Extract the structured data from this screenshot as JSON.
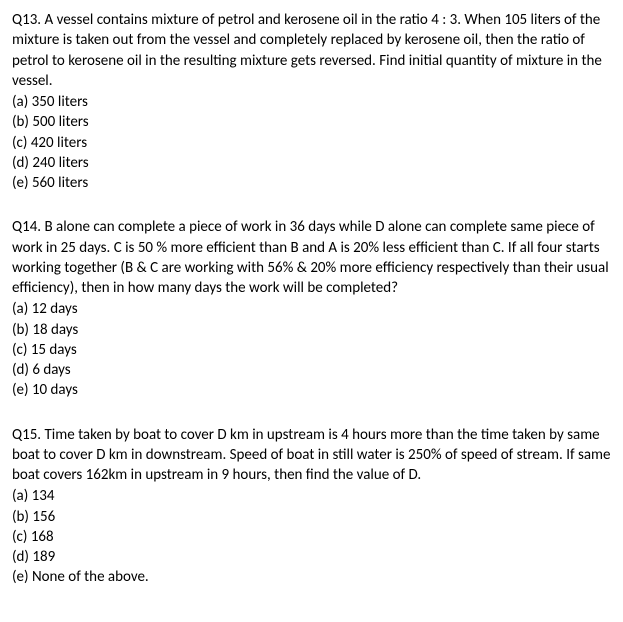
{
  "questions": [
    {
      "number": "Q13.",
      "text": "A vessel contains mixture of petrol and kerosene oil in the ratio 4 : 3. When 105 liters of the mixture is taken out from the vessel and completely replaced by kerosene oil, then the ratio of petrol to kerosene oil in the resulting mixture gets reversed. Find initial quantity of mixture in the vessel.",
      "options": [
        "(a) 350 liters",
        "(b) 500 liters",
        "(c) 420 liters",
        "(d) 240 liters",
        "(e) 560 liters"
      ]
    },
    {
      "number": "Q14.",
      "text": "B alone can complete a piece of work in 36 days while D alone can complete same piece of work in 25 days. C is 50 % more efficient than B and A is 20% less efficient than C. If all four starts working together (B & C are working with 56% & 20% more efficiency respectively than their usual efficiency), then in how many days the work will be completed?",
      "options": [
        "(a) 12 days",
        "(b) 18 days",
        "(c) 15 days",
        "(d) 6 days",
        "(e) 10 days"
      ]
    },
    {
      "number": "Q15.",
      "text": "Time taken by boat to cover D km in upstream is 4 hours more than the time taken by same boat to cover D km in downstream. Speed of boat in still water is 250% of speed of stream. If same boat covers 162km in upstream in 9 hours, then find the value of D.",
      "options": [
        "(a) 134",
        "(b) 156",
        "(c) 168",
        "(d) 189",
        "(e) None of the above."
      ]
    }
  ]
}
